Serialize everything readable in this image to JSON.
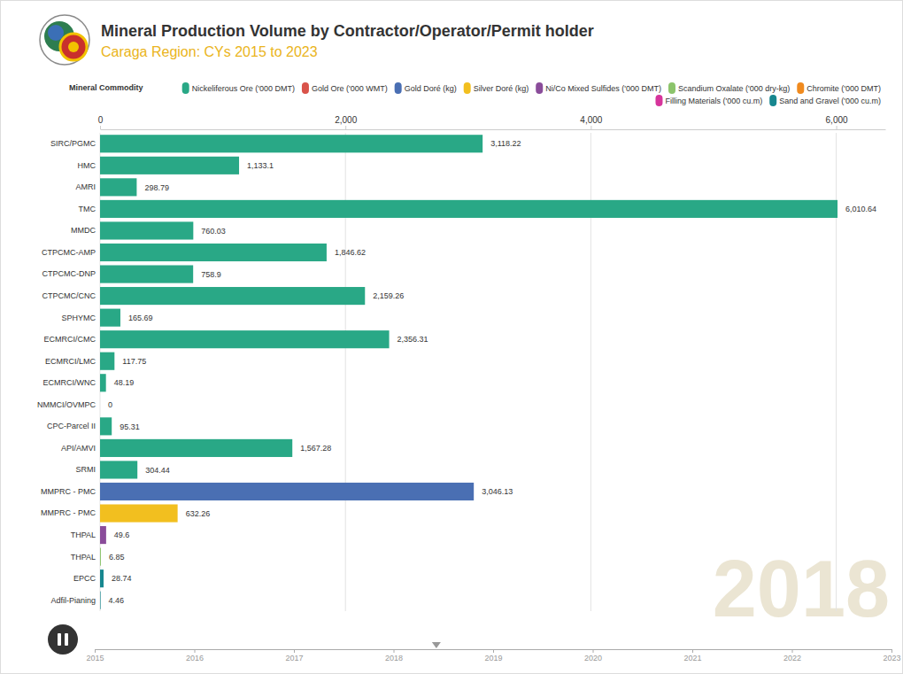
{
  "chart_data": {
    "type": "bar",
    "title": "Mineral Production Volume by Contractor/Operator/Permit holder",
    "subtitle": "Caraga Region: CYs 2015 to 2023",
    "legend_title": "Mineral Commodity",
    "orientation": "horizontal",
    "grid": true,
    "data_labels": true,
    "categories": [
      "SIRC/PGMC",
      "HMC",
      "AMRI",
      "TMC",
      "MMDC",
      "CTPCMC-AMP",
      "CTPCMC-DNP",
      "CTPCMC/CNC",
      "SPHYMC",
      "ECMRCI/CMC",
      "ECMRCI/LMC",
      "ECMRCI/WNC",
      "NMMCI/OVMPC",
      "CPC-Parcel II",
      "API/AMVI",
      "SRMI",
      "MMPRC - PMC",
      "MMPRC - PMC",
      "THPAL",
      "THPAL",
      "EPCC",
      "Adfil-Pianing"
    ],
    "xlim": [
      0,
      6400
    ],
    "xticks": [
      0,
      {
        "value": 2000,
        "label": "2,000"
      },
      {
        "value": 4000,
        "label": "4,000"
      },
      {
        "value": 6000,
        "label": "6,000"
      }
    ],
    "series": [
      {
        "name": "Nickeliferous Ore ('000 DMT)",
        "color": "#29a886",
        "values": [
          3118.22,
          1133.1,
          298.79,
          6010.64,
          760.03,
          1846.62,
          758.9,
          2159.26,
          165.69,
          2356.31,
          117.75,
          48.19,
          0,
          95.31,
          1567.28,
          304.44,
          null,
          null,
          null,
          null,
          null,
          null
        ],
        "value_labels": [
          "3,118.22",
          "1,133.1",
          "298.79",
          "6,010.64",
          "760.03",
          "1,846.62",
          "758.9",
          "2,159.26",
          "165.69",
          "2,356.31",
          "117.75",
          "48.19",
          "0",
          "95.31",
          "1,567.28",
          "304.44",
          null,
          null,
          null,
          null,
          null,
          null
        ]
      },
      {
        "name": "Gold Ore ('000 WMT)",
        "color": "#d9534a",
        "values": [
          null,
          null,
          null,
          null,
          null,
          null,
          null,
          null,
          null,
          null,
          null,
          null,
          null,
          null,
          null,
          null,
          null,
          null,
          null,
          null,
          null,
          null
        ]
      },
      {
        "name": "Gold Doré (kg)",
        "color": "#4a6fb3",
        "values": [
          null,
          null,
          null,
          null,
          null,
          null,
          null,
          null,
          null,
          null,
          null,
          null,
          null,
          null,
          null,
          null,
          3046.13,
          null,
          null,
          null,
          null,
          null
        ],
        "value_labels": [
          null,
          null,
          null,
          null,
          null,
          null,
          null,
          null,
          null,
          null,
          null,
          null,
          null,
          null,
          null,
          null,
          "3,046.13",
          null,
          null,
          null,
          null,
          null
        ]
      },
      {
        "name": "Silver Doré (kg)",
        "color": "#f2bf1f",
        "values": [
          null,
          null,
          null,
          null,
          null,
          null,
          null,
          null,
          null,
          null,
          null,
          null,
          null,
          null,
          null,
          null,
          null,
          632.26,
          null,
          null,
          null,
          null
        ],
        "value_labels": [
          null,
          null,
          null,
          null,
          null,
          null,
          null,
          null,
          null,
          null,
          null,
          null,
          null,
          null,
          null,
          null,
          null,
          "632.26",
          null,
          null,
          null,
          null
        ]
      },
      {
        "name": "Ni/Co Mixed Sulfides ('000 DMT)",
        "color": "#8a4c9a",
        "values": [
          null,
          null,
          null,
          null,
          null,
          null,
          null,
          null,
          null,
          null,
          null,
          null,
          null,
          null,
          null,
          null,
          null,
          null,
          49.6,
          null,
          null,
          null
        ],
        "value_labels": [
          null,
          null,
          null,
          null,
          null,
          null,
          null,
          null,
          null,
          null,
          null,
          null,
          null,
          null,
          null,
          null,
          null,
          null,
          "49.6",
          null,
          null,
          null
        ]
      },
      {
        "name": "Scandium Oxalate ('000 dry-kg)",
        "color": "#8cc46b",
        "values": [
          null,
          null,
          null,
          null,
          null,
          null,
          null,
          null,
          null,
          null,
          null,
          null,
          null,
          null,
          null,
          null,
          null,
          null,
          null,
          6.85,
          null,
          null
        ],
        "value_labels": [
          null,
          null,
          null,
          null,
          null,
          null,
          null,
          null,
          null,
          null,
          null,
          null,
          null,
          null,
          null,
          null,
          null,
          null,
          null,
          "6.85",
          null,
          null
        ]
      },
      {
        "name": "Chromite ('000 DMT)",
        "color": "#f08a1e",
        "values": [
          null,
          null,
          null,
          null,
          null,
          null,
          null,
          null,
          null,
          null,
          null,
          null,
          null,
          null,
          null,
          null,
          null,
          null,
          null,
          null,
          null,
          null
        ]
      },
      {
        "name": "Filling Materials ('000 cu.m)",
        "color": "#d6349b",
        "values": [
          null,
          null,
          null,
          null,
          null,
          null,
          null,
          null,
          null,
          null,
          null,
          null,
          null,
          null,
          null,
          null,
          null,
          null,
          null,
          null,
          null,
          null
        ]
      },
      {
        "name": "Sand and Gravel ('000 cu.m)",
        "color": "#17878f",
        "values": [
          null,
          null,
          null,
          null,
          null,
          null,
          null,
          null,
          null,
          null,
          null,
          null,
          null,
          null,
          null,
          null,
          null,
          null,
          null,
          null,
          28.74,
          4.46
        ],
        "value_labels": [
          null,
          null,
          null,
          null,
          null,
          null,
          null,
          null,
          null,
          null,
          null,
          null,
          null,
          null,
          null,
          null,
          null,
          null,
          null,
          null,
          "28.74",
          "4.46"
        ]
      }
    ]
  },
  "timeline": {
    "label": "2018",
    "position": 2018.43,
    "xlim": [
      2015,
      2023
    ],
    "xticks": [
      2015,
      2016,
      2017,
      2018,
      2019,
      2020,
      2021,
      2022,
      2023
    ]
  }
}
